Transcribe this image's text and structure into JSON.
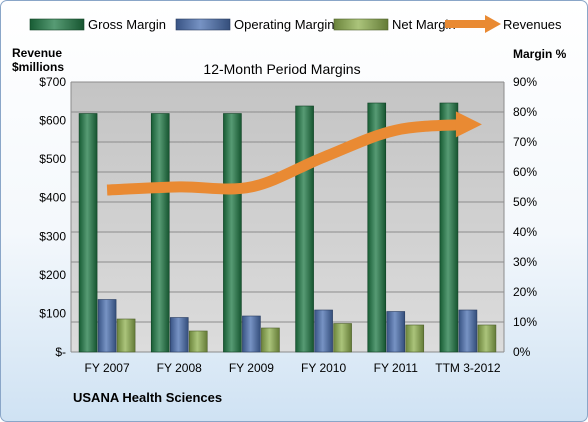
{
  "chart_data": {
    "type": "bar",
    "title": "12-Month Period Margins",
    "footer": "USANA Health Sciences",
    "categories": [
      "FY 2007",
      "FY 2008",
      "FY 2009",
      "FY 2010",
      "FY 2011",
      "TTM 3-2012"
    ],
    "series": [
      {
        "name": "Gross Margin",
        "type": "bar",
        "axis": "right",
        "color": "#1f7a45",
        "values": [
          79.5,
          79.5,
          79.5,
          82,
          83,
          83
        ]
      },
      {
        "name": "Operating Margin",
        "type": "bar",
        "axis": "right",
        "color": "#4a6fb0",
        "values": [
          17.5,
          11.5,
          12,
          14,
          13.5,
          14
        ]
      },
      {
        "name": "Net Margin",
        "type": "bar",
        "axis": "right",
        "color": "#8fb04f",
        "values": [
          11,
          7,
          8,
          9.5,
          9,
          9
        ]
      },
      {
        "name": "Revenues",
        "type": "line",
        "axis": "left",
        "color": "#e98a33",
        "values": [
          420,
          428,
          428,
          505,
          575,
          590
        ]
      }
    ],
    "y_left": {
      "label_line1": "Revenue",
      "label_line2": "$millions",
      "range": [
        0,
        700
      ],
      "ticks": [
        "$-",
        "$100",
        "$200",
        "$300",
        "$400",
        "$500",
        "$600",
        "$700"
      ]
    },
    "y_right": {
      "label": "Margin %",
      "range": [
        0,
        90
      ],
      "ticks": [
        "0%",
        "10%",
        "20%",
        "30%",
        "40%",
        "50%",
        "60%",
        "70%",
        "80%",
        "90%"
      ]
    },
    "grid": true,
    "legend_position": "top"
  }
}
